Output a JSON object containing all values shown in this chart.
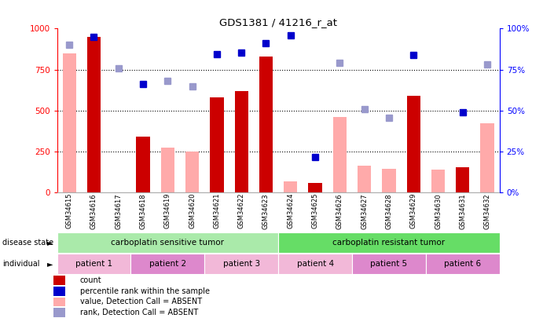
{
  "title": "GDS1381 / 41216_r_at",
  "samples": [
    "GSM34615",
    "GSM34616",
    "GSM34617",
    "GSM34618",
    "GSM34619",
    "GSM34620",
    "GSM34621",
    "GSM34622",
    "GSM34623",
    "GSM34624",
    "GSM34625",
    "GSM34626",
    "GSM34627",
    "GSM34628",
    "GSM34629",
    "GSM34630",
    "GSM34631",
    "GSM34632"
  ],
  "count_red": [
    null,
    950,
    null,
    340,
    null,
    null,
    580,
    620,
    830,
    null,
    60,
    null,
    null,
    null,
    590,
    null,
    155,
    null
  ],
  "count_pink": [
    850,
    null,
    null,
    null,
    275,
    250,
    null,
    null,
    null,
    65,
    null,
    460,
    165,
    145,
    null,
    140,
    null,
    420
  ],
  "rank_blue_dark": [
    null,
    950,
    null,
    660,
    null,
    null,
    845,
    855,
    910,
    960,
    215,
    null,
    null,
    null,
    840,
    null,
    490,
    null
  ],
  "rank_blue_light": [
    900,
    null,
    760,
    null,
    680,
    645,
    null,
    null,
    null,
    null,
    null,
    790,
    510,
    455,
    null,
    null,
    null,
    780
  ],
  "ds_regions": [
    {
      "label": "carboplatin sensitive tumor",
      "start": 0,
      "end": 8,
      "color": "#aaeaaa"
    },
    {
      "label": "carboplatin resistant tumor",
      "start": 9,
      "end": 17,
      "color": "#66dd66"
    }
  ],
  "patient_regions": [
    {
      "label": "patient 1",
      "start": 0,
      "end": 2,
      "color": "#f2b8d8"
    },
    {
      "label": "patient 2",
      "start": 3,
      "end": 5,
      "color": "#dd88cc"
    },
    {
      "label": "patient 3",
      "start": 6,
      "end": 8,
      "color": "#f2b8d8"
    },
    {
      "label": "patient 4",
      "start": 9,
      "end": 11,
      "color": "#f2b8d8"
    },
    {
      "label": "patient 5",
      "start": 12,
      "end": 14,
      "color": "#dd88cc"
    },
    {
      "label": "patient 6",
      "start": 15,
      "end": 17,
      "color": "#dd88cc"
    }
  ],
  "ylim_left": [
    0,
    1000
  ],
  "ylim_right": [
    0,
    100
  ],
  "yticks_left": [
    0,
    250,
    500,
    750,
    1000
  ],
  "yticks_right": [
    0,
    25,
    50,
    75,
    100
  ],
  "bg_color": "#ffffff",
  "bar_color_red": "#cc0000",
  "bar_color_pink": "#ffaaaa",
  "dot_color_blue_dark": "#0000cc",
  "dot_color_blue_light": "#9999cc",
  "xtick_bg": "#cccccc",
  "legend_items": [
    {
      "label": "count",
      "color": "#cc0000"
    },
    {
      "label": "percentile rank within the sample",
      "color": "#0000cc"
    },
    {
      "label": "value, Detection Call = ABSENT",
      "color": "#ffaaaa"
    },
    {
      "label": "rank, Detection Call = ABSENT",
      "color": "#9999cc"
    }
  ]
}
